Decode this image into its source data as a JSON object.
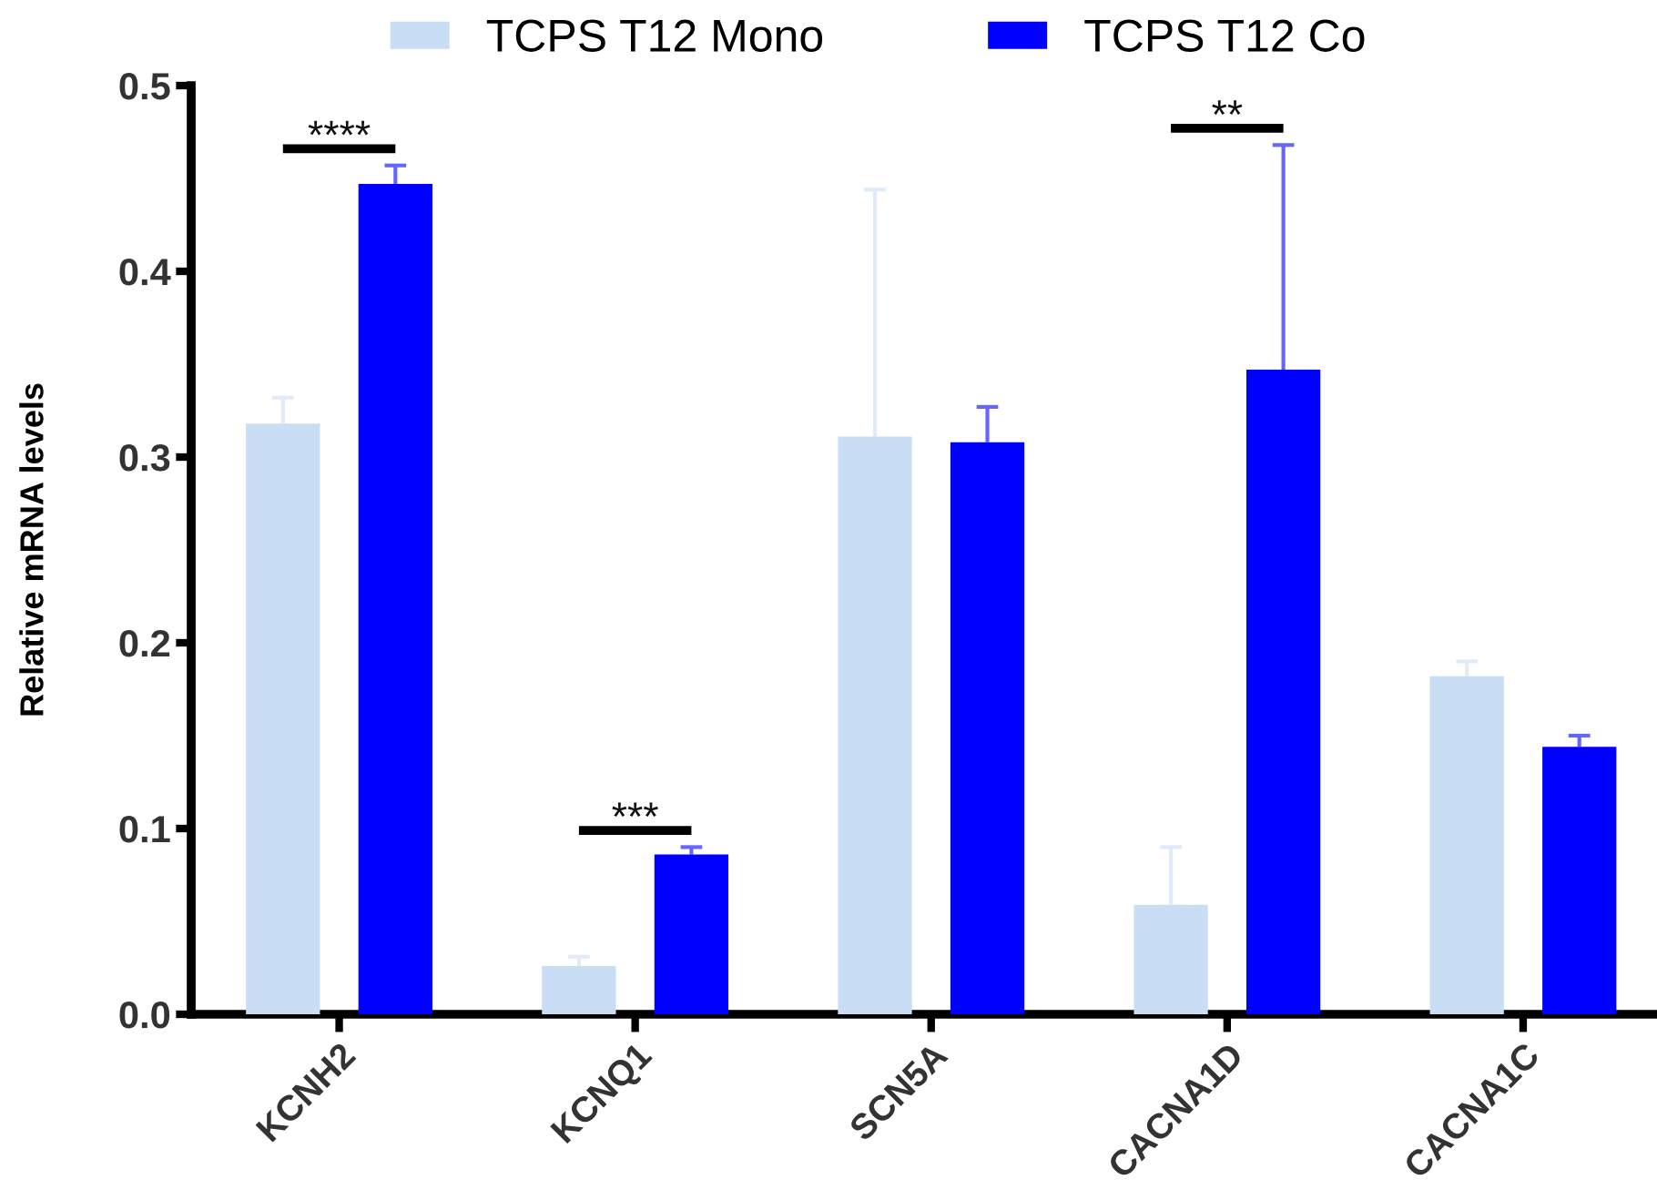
{
  "chart_data": {
    "type": "bar",
    "ylabel": "Relative mRNA levels",
    "categories": [
      "KCNH2",
      "KCNQ1",
      "SCN5A",
      "CACNA1D",
      "CACNA1C"
    ],
    "series": [
      {
        "name": "TCPS T12 Mono",
        "color": "#c9ddf5",
        "values": [
          0.318,
          0.026,
          0.311,
          0.059,
          0.182
        ],
        "errors": [
          [
            0.318,
            0.332
          ],
          [
            0.026,
            0.031
          ],
          [
            0.311,
            0.444
          ],
          [
            0.059,
            0.09
          ],
          [
            0.182,
            0.19
          ]
        ]
      },
      {
        "name": "TCPS T12 Co",
        "color": "#0000ff",
        "values": [
          0.447,
          0.086,
          0.308,
          0.347,
          0.144
        ],
        "errors": [
          [
            0.447,
            0.457
          ],
          [
            0.086,
            0.09
          ],
          [
            0.308,
            0.327
          ],
          [
            0.347,
            0.468
          ],
          [
            0.144,
            0.15
          ]
        ]
      }
    ],
    "ylim": [
      0,
      0.5
    ],
    "yticks": [
      {
        "value": 0,
        "label": "0.0"
      },
      0.1,
      0.2,
      0.3,
      0.4,
      0.5
    ],
    "legend": "top",
    "annotations": [
      "****",
      "***",
      "**"
    ]
  }
}
